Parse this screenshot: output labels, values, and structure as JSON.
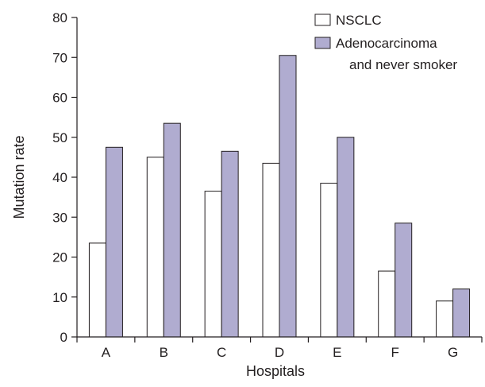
{
  "colors": {
    "nsclc_fill": "#ffffff",
    "adeno_fill": "#b0acd0",
    "stroke": "#231f20"
  },
  "chart_data": {
    "type": "bar",
    "categories": [
      "A",
      "B",
      "C",
      "D",
      "E",
      "F",
      "G"
    ],
    "series": [
      {
        "name": "NSCLC",
        "values": [
          23.5,
          45,
          36.5,
          43.5,
          38.5,
          16.5,
          9
        ]
      },
      {
        "name": "Adenocarcinoma and never smoker",
        "values": [
          47.5,
          53.5,
          46.5,
          70.5,
          50,
          28.5,
          12
        ]
      }
    ],
    "legend": {
      "position": "top-right",
      "entries": [
        {
          "lines": [
            "NSCLC"
          ]
        },
        {
          "lines": [
            "Adenocarcinoma",
            "and never smoker"
          ]
        }
      ]
    },
    "xlabel": "Hospitals",
    "ylabel": "Mutation rate",
    "ylim": [
      0,
      80
    ],
    "yticks": [
      0,
      10,
      20,
      30,
      40,
      50,
      60,
      70,
      80
    ],
    "grid": false
  }
}
